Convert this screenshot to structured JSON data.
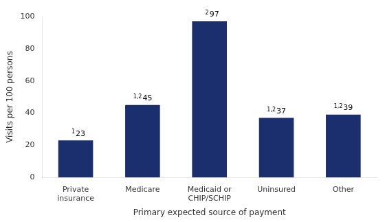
{
  "chart_data": {
    "type": "bar",
    "categories": [
      "Private\ninsurance",
      "Medicare",
      "Medicaid or\nCHIP/SCHIP",
      "Uninsured",
      "Other"
    ],
    "values": [
      23,
      45,
      97,
      37,
      39
    ],
    "color": "#1b2f6e",
    "annotations": [
      "1",
      "1,2",
      "2",
      "1,2",
      "1,2"
    ],
    "data_labels": true,
    "xlabel": "Primary expected source of payment",
    "ylabel": "Visits per 100 persons",
    "ylim": [
      0,
      100
    ],
    "yticks": [
      0,
      20,
      40,
      60,
      80,
      100
    ],
    "grid": false
  }
}
